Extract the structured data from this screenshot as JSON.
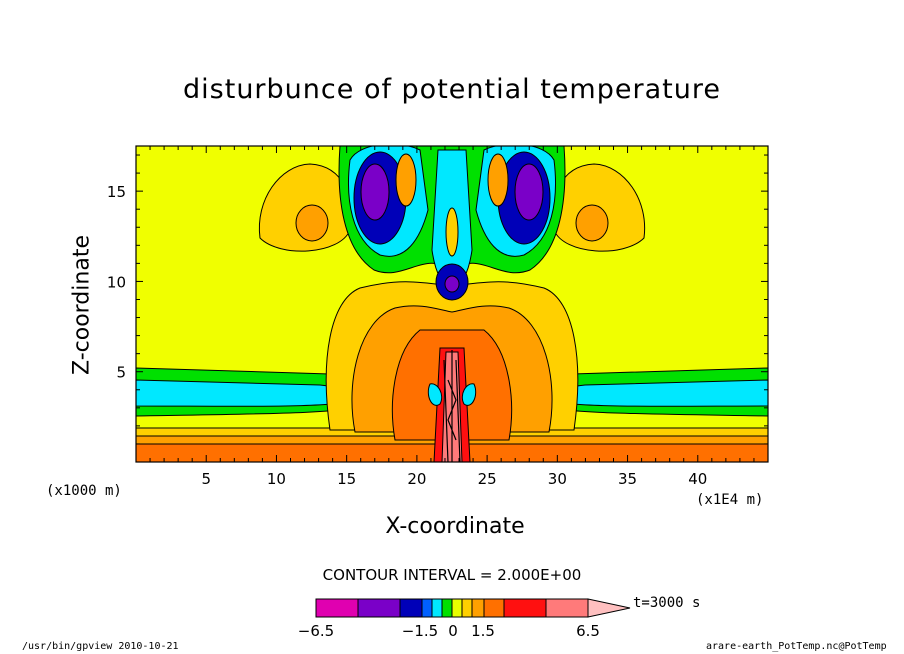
{
  "chart_data": {
    "type": "heatmap",
    "title": "disturbunce of potential temperature",
    "xlabel": "X-coordinate",
    "ylabel": "Z-coordinate",
    "x_units_left": "(x1000 m)",
    "x_units_right": "(x1E4 m)",
    "xlim": [
      0,
      45
    ],
    "ylim": [
      0,
      17.5
    ],
    "x_ticks": [
      "5",
      "10",
      "15",
      "20",
      "25",
      "30",
      "35",
      "40"
    ],
    "y_ticks": [
      "5",
      "10",
      "15"
    ],
    "contour_interval": "CONTOUR INTERVAL = 2.000E+00",
    "time_label": "t=3000 s",
    "colorbar_labels": [
      "−6.5",
      "−1.5",
      "0",
      "1.5",
      "6.5"
    ],
    "colorbar_colors": [
      "#e000b0",
      "#7a00c8",
      "#0000b8",
      "#0060ff",
      "#00e8ff",
      "#00e000",
      "#e8ff00",
      "#ffd000",
      "#ffa000",
      "#ff7000",
      "#ff1010",
      "#ff7a7a",
      "#ffc0c0"
    ],
    "background_color": "#f0ff00"
  },
  "footer": {
    "left": "/usr/bin/gpview  2010-10-21",
    "right": "arare-earth_PotTemp.nc@PotTemp"
  }
}
